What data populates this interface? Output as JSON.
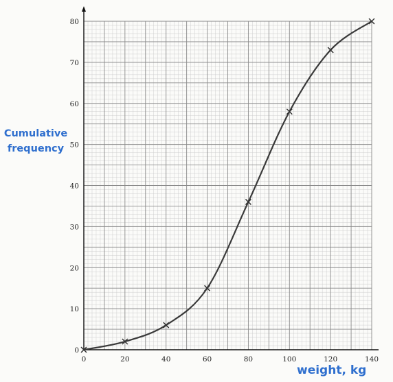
{
  "chart_data": {
    "type": "line",
    "title": "",
    "xlabel": "weight, kg",
    "ylabel": "Cumulative frequency",
    "xlim": [
      0,
      140
    ],
    "ylim": [
      0,
      80
    ],
    "x_ticks": [
      "0",
      "20",
      "40",
      "60",
      "80",
      "100",
      "120",
      "140"
    ],
    "y_ticks": [
      "0",
      "10",
      "20",
      "30",
      "40",
      "50",
      "60",
      "70",
      "80"
    ],
    "grid": true,
    "legend": "none",
    "series": [
      {
        "x": [
          0,
          20,
          40,
          60,
          80,
          100,
          120,
          140
        ],
        "y": [
          0,
          2,
          6,
          15,
          36,
          58,
          73,
          80
        ]
      }
    ],
    "colors": {
      "curve": "#3a3a3a",
      "grid_major": "#8a8a8a",
      "grid_minor": "#c9c9c9",
      "axis_label": "#2f6fce"
    }
  }
}
